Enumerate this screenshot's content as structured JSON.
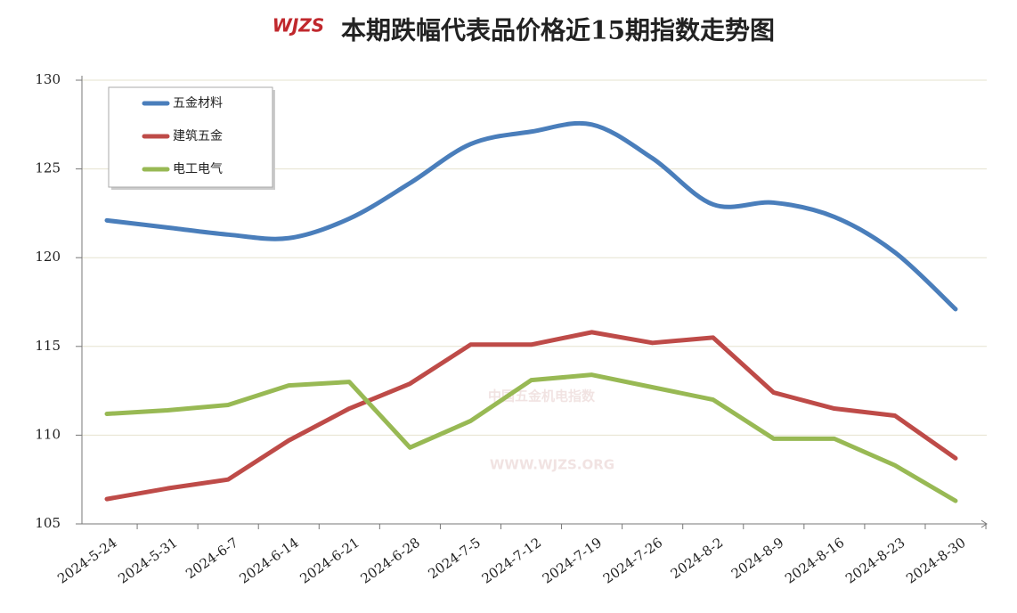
{
  "chart_data": {
    "type": "line",
    "title": "本期跌幅代表品价格近15期指数走势图",
    "logo": "WJZS",
    "watermark": [
      "中国五金机电指数",
      "WWW.WJZS.ORG"
    ],
    "categories": [
      "2024-5-24",
      "2024-5-31",
      "2024-6-7",
      "2024-6-14",
      "2024-6-21",
      "2024-6-28",
      "2024-7-5",
      "2024-7-12",
      "2024-7-19",
      "2024-7-26",
      "2024-8-2",
      "2024-8-9",
      "2024-8-16",
      "2024-8-23",
      "2024-8-30"
    ],
    "series": [
      {
        "name": "五金材料",
        "color": "#4a7ebb",
        "smooth": true,
        "values": [
          122.1,
          121.7,
          121.3,
          121.1,
          122.2,
          124.2,
          126.4,
          127.1,
          127.5,
          125.6,
          123.0,
          123.1,
          122.3,
          120.3,
          117.1
        ]
      },
      {
        "name": "建筑五金",
        "color": "#be4b48",
        "smooth": false,
        "values": [
          106.4,
          107.0,
          107.5,
          109.7,
          111.5,
          112.9,
          115.1,
          115.1,
          115.8,
          115.2,
          115.5,
          112.4,
          111.5,
          111.1,
          108.7
        ]
      },
      {
        "name": "电工电气",
        "color": "#98b954",
        "smooth": false,
        "values": [
          111.2,
          111.4,
          111.7,
          112.8,
          113.0,
          109.3,
          110.8,
          113.1,
          113.4,
          112.7,
          112.0,
          109.8,
          109.8,
          108.3,
          106.3
        ]
      }
    ],
    "ylim": [
      105,
      130
    ],
    "yticks": [
      105,
      110,
      115,
      120,
      125,
      130
    ],
    "grid": true,
    "legend": "upper left"
  }
}
